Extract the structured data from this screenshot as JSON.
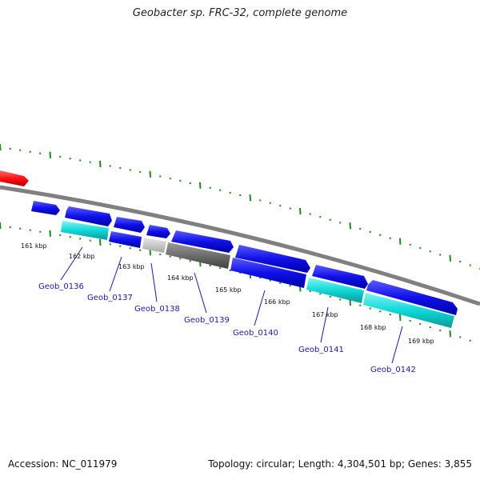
{
  "title": "Geobacter sp. FRC-32, complete genome",
  "footer": {
    "accession": "Accession: NC_011979",
    "summary": "Topology: circular; Length: 4,304,501 bp; Genes: 3,855"
  },
  "ticks": [
    "161 kbp",
    "162 kbp",
    "163 kbp",
    "164 kbp",
    "165 kbp",
    "166 kbp",
    "167 kbp",
    "168 kbp",
    "169 kbp"
  ],
  "gene_labels": [
    "Geob_0136",
    "Geob_0137",
    "Geob_0138",
    "Geob_0139",
    "Geob_0140",
    "Geob_0141",
    "Geob_0142"
  ],
  "colors": {
    "cds": "#1010e8",
    "rna": "#ff1010",
    "cyan": "#10d8d8",
    "light_gray": "#c8c8c8",
    "dark_gray": "#6a6a6a",
    "backbone": "#808080",
    "dots": "#1a8a1a",
    "label": "#1a1aa8"
  }
}
